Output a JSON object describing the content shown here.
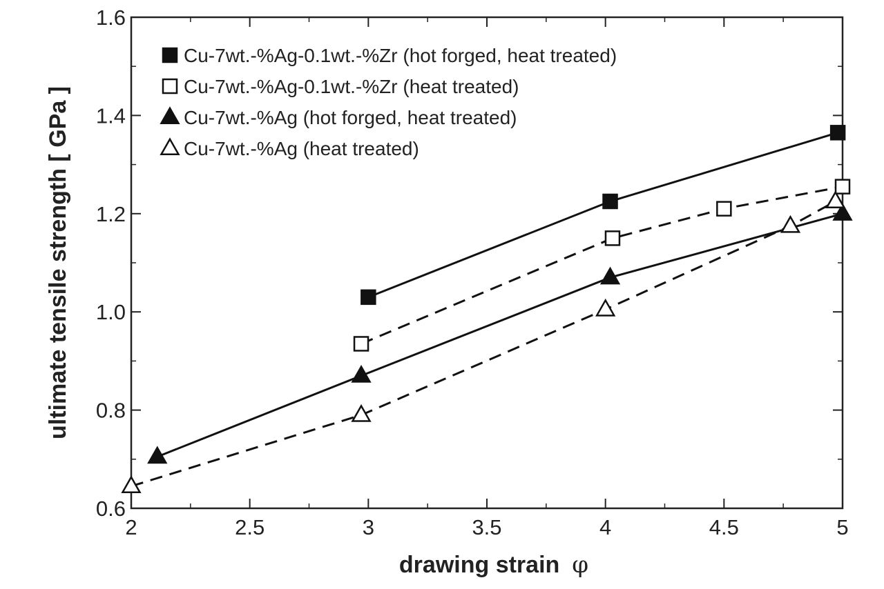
{
  "chart_data": {
    "type": "line",
    "xlabel": "drawing strain",
    "xlabel_symbol": "φ",
    "ylabel": "ultimate tensile strength  [ GPa ]",
    "xlim": [
      2,
      5
    ],
    "ylim": [
      0.6,
      1.6
    ],
    "x_ticks": [
      "2",
      "2.5",
      "3",
      "3.5",
      "4",
      "4.5",
      "5"
    ],
    "y_ticks": [
      "0.6",
      "0.8",
      "1.0",
      "1.2",
      "1.4",
      "1.6"
    ],
    "grid": false,
    "legend_position": "top-left",
    "series": [
      {
        "name": "Cu-7wt.-%Ag-0.1wt.-%Zr (hot forged, heat treated)",
        "marker": "filled-square",
        "line": "solid",
        "x": [
          3.0,
          4.02,
          4.98
        ],
        "y": [
          1.03,
          1.225,
          1.365
        ]
      },
      {
        "name": "Cu-7wt.-%Ag-0.1wt.-%Zr (heat treated)",
        "marker": "open-square",
        "line": "dashed",
        "x": [
          2.97,
          4.03,
          4.5,
          5.0
        ],
        "y": [
          0.935,
          1.15,
          1.21,
          1.255
        ]
      },
      {
        "name": "Cu-7wt.-%Ag (hot forged, heat treated)",
        "marker": "filled-triangle",
        "line": "solid",
        "x": [
          2.11,
          2.97,
          4.02,
          5.0
        ],
        "y": [
          0.705,
          0.87,
          1.07,
          1.2
        ]
      },
      {
        "name": "Cu-7wt.-%Ag (heat treated)",
        "marker": "open-triangle",
        "line": "dashed",
        "x": [
          2.0,
          2.97,
          4.0,
          4.78,
          4.97
        ],
        "y": [
          0.645,
          0.79,
          1.005,
          1.175,
          1.225
        ]
      }
    ]
  }
}
